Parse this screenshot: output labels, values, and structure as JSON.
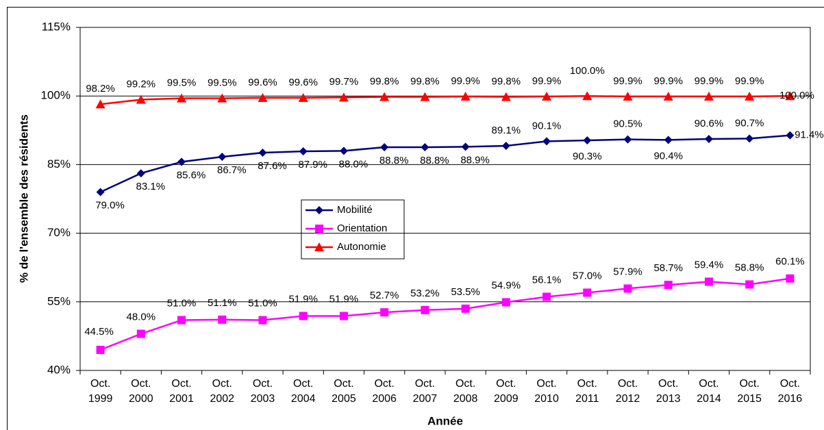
{
  "chart_data": {
    "type": "line",
    "x_label": "Année",
    "y_label": "% de l'ensemble des résidents",
    "categories": [
      "Oct. 1999",
      "Oct. 2000",
      "Oct. 2001",
      "Oct. 2002",
      "Oct. 2003",
      "Oct. 2004",
      "Oct. 2005",
      "Oct. 2006",
      "Oct. 2007",
      "Oct. 2008",
      "Oct. 2009",
      "Oct. 2010",
      "Oct. 2011",
      "Oct. 2012",
      "Oct. 2013",
      "Oct. 2014",
      "Oct. 2015",
      "Oct. 2016"
    ],
    "series": [
      {
        "name": "Mobilité",
        "color": "#000080",
        "marker": "diamond",
        "values": [
          79.0,
          83.1,
          85.6,
          86.7,
          87.6,
          87.9,
          88.0,
          88.8,
          88.8,
          88.9,
          89.1,
          90.1,
          90.3,
          90.5,
          90.4,
          90.6,
          90.7,
          91.4
        ],
        "value_labels": [
          "79.0%",
          "83.1%",
          "85.6%",
          "86.7%",
          "87.6%",
          "87.9%",
          "88.0%",
          "88.8%",
          "88.8%",
          "88.9%",
          "89.1%",
          "90.1%",
          "90.3%",
          "90.5%",
          "90.4%",
          "90.6%",
          "90.7%",
          "91.4%"
        ]
      },
      {
        "name": "Orientation",
        "color": "#ff00ff",
        "marker": "square",
        "values": [
          44.5,
          48.0,
          51.0,
          51.1,
          51.0,
          51.9,
          51.9,
          52.7,
          53.2,
          53.5,
          54.9,
          56.1,
          57.0,
          57.9,
          58.7,
          59.4,
          58.8,
          60.1
        ],
        "value_labels": [
          "44.5%",
          "48.0%",
          "51.0%",
          "51.1%",
          "51.0%",
          "51.9%",
          "51.9%",
          "52.7%",
          "53.2%",
          "53.5%",
          "54.9%",
          "56.1%",
          "57.0%",
          "57.9%",
          "58.7%",
          "59.4%",
          "58.8%",
          "60.1%"
        ]
      },
      {
        "name": "Autonomie",
        "color": "#ff0000",
        "marker": "triangle",
        "values": [
          98.2,
          99.2,
          99.5,
          99.5,
          99.6,
          99.6,
          99.7,
          99.8,
          99.8,
          99.9,
          99.8,
          99.9,
          100.0,
          99.9,
          99.9,
          99.9,
          99.9,
          100.0
        ],
        "value_labels": [
          "98.2%",
          "99.2%",
          "99.5%",
          "99.5%",
          "99.6%",
          "99.6%",
          "99.7%",
          "99.8%",
          "99.8%",
          "99.9%",
          "99.8%",
          "99.9%",
          "100.0%",
          "99.9%",
          "99.9%",
          "99.9%",
          "99.9%",
          "100.0%"
        ]
      }
    ],
    "ylim": [
      40,
      115
    ],
    "yticks": [
      {
        "value": 40,
        "label": "40%"
      },
      {
        "value": 55,
        "label": "55%"
      },
      {
        "value": 70,
        "label": "70%"
      },
      {
        "value": 85,
        "label": "85%"
      },
      {
        "value": 100,
        "label": "100%"
      },
      {
        "value": 115,
        "label": "115%"
      }
    ],
    "grid": true
  }
}
